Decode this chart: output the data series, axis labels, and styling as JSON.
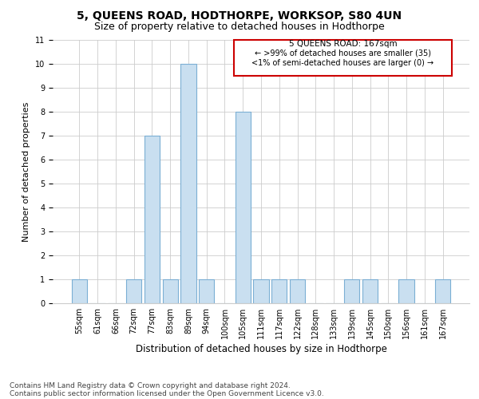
{
  "title": "5, QUEENS ROAD, HODTHORPE, WORKSOP, S80 4UN",
  "subtitle": "Size of property relative to detached houses in Hodthorpe",
  "xlabel": "Distribution of detached houses by size in Hodthorpe",
  "ylabel": "Number of detached properties",
  "categories": [
    "55sqm",
    "61sqm",
    "66sqm",
    "72sqm",
    "77sqm",
    "83sqm",
    "89sqm",
    "94sqm",
    "100sqm",
    "105sqm",
    "111sqm",
    "117sqm",
    "122sqm",
    "128sqm",
    "133sqm",
    "139sqm",
    "145sqm",
    "150sqm",
    "156sqm",
    "161sqm",
    "167sqm"
  ],
  "values": [
    1,
    0,
    0,
    1,
    7,
    1,
    10,
    1,
    0,
    8,
    1,
    1,
    1,
    0,
    0,
    1,
    1,
    0,
    1,
    0,
    1
  ],
  "bar_color": "#c9dff0",
  "bar_edge_color": "#7bafd4",
  "annotation_box_color": "#cc0000",
  "annotation_title": "5 QUEENS ROAD: 167sqm",
  "annotation_line1": "← >99% of detached houses are smaller (35)",
  "annotation_line2": "<1% of semi-detached houses are larger (0) →",
  "ylim": [
    0,
    11
  ],
  "yticks": [
    0,
    1,
    2,
    3,
    4,
    5,
    6,
    7,
    8,
    9,
    10,
    11
  ],
  "footer1": "Contains HM Land Registry data © Crown copyright and database right 2024.",
  "footer2": "Contains public sector information licensed under the Open Government Licence v3.0.",
  "title_fontsize": 10,
  "subtitle_fontsize": 9,
  "xlabel_fontsize": 8.5,
  "ylabel_fontsize": 8,
  "tick_fontsize": 7,
  "footer_fontsize": 6.5,
  "ann_fontsize_title": 7.5,
  "ann_fontsize_body": 7
}
